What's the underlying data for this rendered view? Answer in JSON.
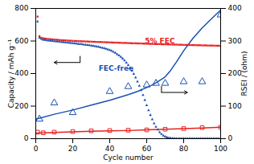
{
  "chart_data": {
    "type": "scatter",
    "xlabel": "Cycle number",
    "ylabel": "Capacity / mAh g⁻¹",
    "y2label": "RSEI / (ohm)",
    "xlim": [
      0,
      100
    ],
    "xticks": [
      0,
      20,
      40,
      60,
      80,
      100
    ],
    "ylim": [
      0,
      800
    ],
    "yticks": [
      0,
      200,
      400,
      600,
      800
    ],
    "y2lim": [
      0,
      400
    ],
    "y2ticks": [
      0,
      100,
      200,
      300,
      400
    ],
    "grid": false,
    "series": [
      {
        "type": "scatter",
        "marker": "square",
        "color": "#e82020",
        "x": [
          1,
          2,
          3,
          4,
          5,
          6,
          7,
          8,
          9,
          10,
          11,
          12,
          13,
          14,
          15,
          16,
          17,
          18,
          19,
          20,
          21,
          22,
          23,
          24,
          25,
          26,
          27,
          28,
          29,
          30,
          31,
          32,
          33,
          34,
          35,
          36,
          37,
          38,
          39,
          40,
          41,
          42,
          43,
          44,
          45,
          46,
          47,
          48,
          49,
          50,
          51,
          52,
          53,
          54,
          55,
          56,
          57,
          58,
          59,
          60,
          61,
          62,
          63,
          64,
          65,
          66,
          67,
          68,
          69,
          70,
          71,
          72,
          73,
          74,
          75,
          76,
          77,
          78,
          79,
          80,
          81,
          82,
          83,
          84,
          85,
          86,
          87,
          88,
          89,
          90,
          91,
          92,
          93,
          94,
          95,
          96,
          97,
          98,
          99,
          100
        ],
        "values": [
          750,
          630,
          620,
          617,
          615,
          613,
          612,
          611,
          610,
          609,
          608,
          607,
          606,
          605,
          604,
          604,
          603,
          602,
          602,
          601,
          600,
          600,
          599,
          599,
          598,
          598,
          597,
          597,
          596,
          596,
          595,
          595,
          594,
          594,
          594,
          593,
          593,
          592,
          592,
          591,
          591,
          590,
          590,
          590,
          589,
          589,
          588,
          588,
          588,
          587,
          587,
          586,
          586,
          586,
          585,
          585,
          585,
          584,
          584,
          583,
          583,
          582,
          582,
          582,
          581,
          581,
          581,
          580,
          580,
          580,
          579,
          579,
          579,
          578,
          578,
          578,
          577,
          577,
          577,
          576,
          576,
          576,
          575,
          575,
          575,
          575,
          574,
          574,
          574,
          573,
          573,
          573,
          572,
          572,
          572,
          572,
          571,
          571,
          571,
          570
        ]
      },
      {
        "type": "scatter",
        "marker": "triangle",
        "color": "#1a50b0",
        "x": [
          1,
          2,
          3,
          4,
          5,
          6,
          7,
          8,
          9,
          10,
          11,
          12,
          13,
          14,
          15,
          16,
          17,
          18,
          19,
          20,
          21,
          22,
          23,
          24,
          25,
          26,
          27,
          28,
          29,
          30,
          31,
          32,
          33,
          34,
          35,
          36,
          37,
          38,
          39,
          40,
          41,
          42,
          43,
          44,
          45,
          46,
          47,
          48,
          49,
          50,
          51,
          52,
          53,
          54,
          55,
          56,
          57,
          58,
          59,
          60,
          61,
          62,
          63,
          64,
          65,
          66,
          67,
          68,
          69,
          70,
          71,
          72,
          73,
          74,
          75,
          76,
          77,
          78,
          79,
          80,
          81,
          82,
          83,
          84,
          85,
          86,
          87,
          88,
          89,
          90,
          91,
          92,
          93,
          94,
          95,
          96,
          97,
          98,
          99,
          100
        ],
        "values": [
          720,
          620,
          612,
          608,
          606,
          604,
          602,
          601,
          600,
          599,
          598,
          596,
          595,
          594,
          593,
          591,
          590,
          589,
          588,
          586,
          585,
          584,
          582,
          581,
          580,
          578,
          577,
          575,
          574,
          572,
          570,
          568,
          566,
          564,
          561,
          558,
          555,
          552,
          548,
          544,
          539,
          533,
          527,
          519,
          511,
          502,
          492,
          480,
          467,
          452,
          435,
          417,
          397,
          375,
          351,
          325,
          298,
          268,
          237,
          205,
          174,
          145,
          118,
          94,
          73,
          55,
          40,
          28,
          19,
          12,
          8,
          5,
          3,
          2,
          2,
          1,
          1,
          1,
          1,
          1,
          1,
          1,
          1,
          1,
          1,
          1,
          1,
          1,
          1,
          1,
          1,
          1,
          1,
          1,
          1,
          1,
          1,
          1,
          1,
          1
        ]
      },
      {
        "type": "scatter",
        "marker": "square-open",
        "color": "#e82020",
        "axis": "y2",
        "x": [
          1,
          4,
          10,
          20,
          30,
          40,
          50,
          60,
          70,
          80,
          90,
          100
        ],
        "values": [
          20,
          18,
          20,
          22,
          24,
          25,
          26,
          27,
          29,
          31,
          34,
          35
        ]
      },
      {
        "type": "scatter",
        "marker": "triangle-open",
        "color": "#1a50b0",
        "axis": "y2",
        "x": [
          2,
          10,
          20,
          40,
          50,
          60,
          65,
          70,
          80,
          90,
          100
        ],
        "values": [
          60,
          110,
          80,
          145,
          160,
          165,
          170,
          170,
          175,
          175,
          380
        ]
      },
      {
        "type": "line",
        "line_style": "solid",
        "color": "#e82020",
        "axis": "y2",
        "x": [
          0,
          5,
          10,
          20,
          30,
          40,
          50,
          60,
          70,
          80,
          90,
          100
        ],
        "values": [
          17,
          18,
          19,
          21,
          23,
          24,
          25,
          27,
          29,
          31,
          33,
          35
        ]
      },
      {
        "type": "line",
        "line_style": "solid",
        "color": "#1a50b0",
        "axis": "y2",
        "x": [
          0,
          10,
          20,
          30,
          40,
          50,
          55,
          60,
          63,
          66,
          70,
          73,
          76,
          80,
          85,
          90,
          95,
          100
        ],
        "values": [
          60,
          75,
          88,
          103,
          118,
          135,
          145,
          157,
          165,
          175,
          190,
          210,
          235,
          270,
          308,
          340,
          368,
          395
        ]
      }
    ],
    "annotations": [
      {
        "text": "5% FEC",
        "color": "#e82020"
      },
      {
        "text": "FEC-free",
        "color": "#1a50b0"
      }
    ]
  }
}
